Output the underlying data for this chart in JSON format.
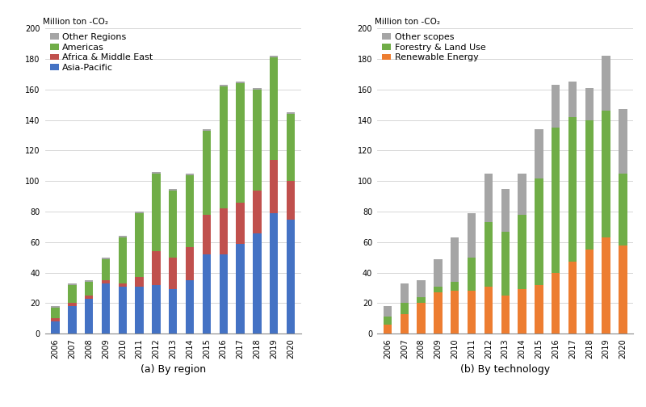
{
  "years": [
    2006,
    2007,
    2008,
    2009,
    2010,
    2011,
    2012,
    2013,
    2014,
    2015,
    2016,
    2017,
    2018,
    2019,
    2020
  ],
  "region": {
    "asia_pacific": [
      8,
      18,
      23,
      33,
      31,
      31,
      32,
      29,
      35,
      52,
      52,
      59,
      66,
      79,
      75
    ],
    "africa_middle_east": [
      2,
      2,
      2,
      2,
      2,
      6,
      22,
      21,
      22,
      26,
      30,
      27,
      28,
      35,
      25
    ],
    "americas": [
      7,
      12,
      9,
      14,
      30,
      42,
      51,
      44,
      47,
      55,
      80,
      78,
      66,
      67,
      44
    ],
    "other_regions": [
      1,
      1,
      1,
      1,
      1,
      1,
      1,
      1,
      1,
      1,
      1,
      1,
      1,
      1,
      1
    ]
  },
  "technology": {
    "renewable_energy": [
      6,
      13,
      20,
      27,
      28,
      28,
      31,
      25,
      29,
      32,
      40,
      47,
      55,
      63,
      58
    ],
    "forestry_land_use": [
      5,
      7,
      4,
      4,
      6,
      22,
      42,
      42,
      49,
      70,
      95,
      95,
      85,
      83,
      47
    ],
    "other_scopes": [
      7,
      13,
      11,
      18,
      29,
      29,
      32,
      28,
      27,
      32,
      28,
      23,
      21,
      36,
      42
    ]
  },
  "region_colors": {
    "asia_pacific": "#4472c4",
    "africa_middle_east": "#c0504d",
    "americas": "#70ad47",
    "other_regions": "#a5a5a5"
  },
  "tech_colors": {
    "renewable_energy": "#ed7d31",
    "forestry_land_use": "#70ad47",
    "other_scopes": "#a5a5a5"
  },
  "ylabel": "Million ton -CO₂",
  "ylim": [
    0,
    200
  ],
  "yticks": [
    0,
    20,
    40,
    60,
    80,
    100,
    120,
    140,
    160,
    180,
    200
  ],
  "xlabel_a": "(a) By region",
  "xlabel_b": "(b) By technology",
  "legend_region": [
    "Other Regions",
    "Americas",
    "Africa & Middle East",
    "Asia-Pacific"
  ],
  "legend_tech": [
    "Other scopes",
    "Forestry & Land Use",
    "Renewable Energy"
  ],
  "background_color": "#ffffff",
  "bar_width": 0.5,
  "tick_fontsize": 7,
  "legend_fontsize": 8,
  "ylabel_fontsize": 7.5,
  "xlabel_fontsize": 9
}
